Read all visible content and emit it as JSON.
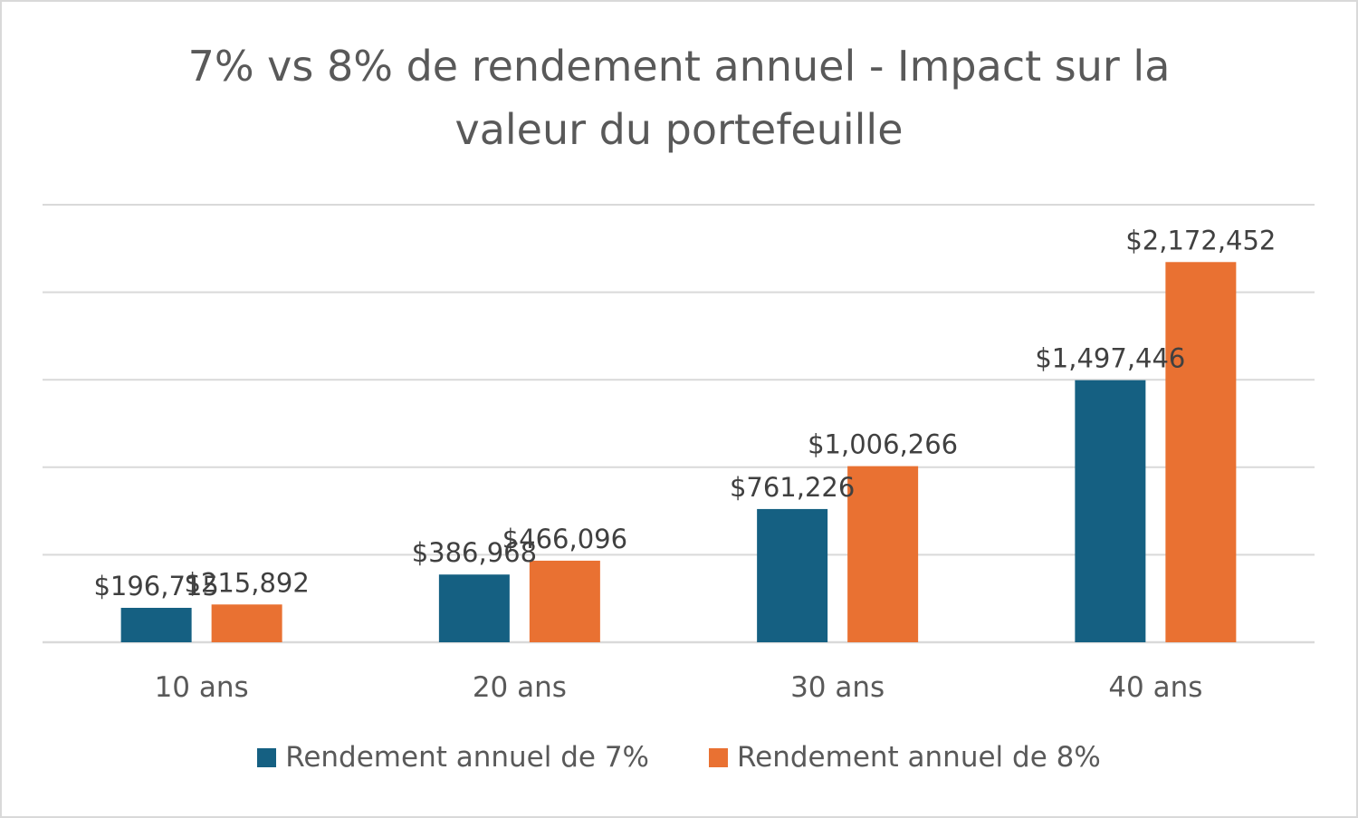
{
  "chart_data": {
    "type": "bar",
    "title": "7% vs 8% de rendement annuel - Impact sur la valeur du portefeuille",
    "categories": [
      "10 ans",
      "20 ans",
      "30 ans",
      "40 ans"
    ],
    "series": [
      {
        "name": "Rendement annuel de 7%",
        "color": "#156082",
        "values": [
          196715,
          386968,
          761226,
          1497446
        ],
        "labels": [
          "$196,715",
          "$386,968",
          "$761,226",
          "$1,497,446"
        ]
      },
      {
        "name": "Rendement annuel de 8%",
        "color": "#E97132",
        "values": [
          215892,
          466096,
          1006266,
          2172452
        ],
        "labels": [
          "$215,892",
          "$466,096",
          "$1,006,266",
          "$2,172,452"
        ]
      }
    ],
    "ylim": [
      0,
      2500000
    ],
    "gridlines": true,
    "legend": "bottom"
  }
}
